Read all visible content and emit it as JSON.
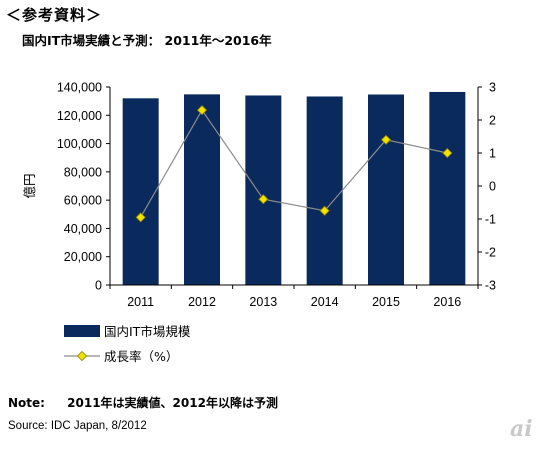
{
  "heading": "＜参考資料＞",
  "chart_title": "国内IT市場実績と予測：  2011年～2016年",
  "note": {
    "label": "Note:",
    "text": "2011年は実績値、2012年以降は予測"
  },
  "source": "Source: IDC Japan, 8/2012",
  "logo": "ai",
  "colors": {
    "bar": "#0a2a5e",
    "line": "#8c8c8c",
    "marker": "#f2e200",
    "marker_stroke": "#8a8000",
    "axis": "#000000"
  },
  "chart_data": {
    "type": "bar",
    "categories": [
      "2011",
      "2012",
      "2013",
      "2014",
      "2015",
      "2016"
    ],
    "series": [
      {
        "name": "国内IT市場規模",
        "type": "bar",
        "axis": "left",
        "values": [
          132000,
          134800,
          134000,
          133300,
          134700,
          136500
        ]
      },
      {
        "name": "成長率（%）",
        "type": "line",
        "axis": "right",
        "values": [
          -0.95,
          2.3,
          -0.4,
          -0.75,
          1.4,
          1.0
        ]
      }
    ],
    "ylabel": "億円",
    "ylim": [
      0,
      140000
    ],
    "y_ticks": [
      "0",
      "20,000",
      "40,000",
      "60,000",
      "80,000",
      "100,000",
      "120,000",
      "140,000"
    ],
    "y2lim": [
      -3,
      3
    ],
    "y2_ticks": [
      "-3",
      "-2",
      "-1",
      "0",
      "1",
      "2",
      "3"
    ],
    "grid": false,
    "legend_position": "bottom-left"
  }
}
